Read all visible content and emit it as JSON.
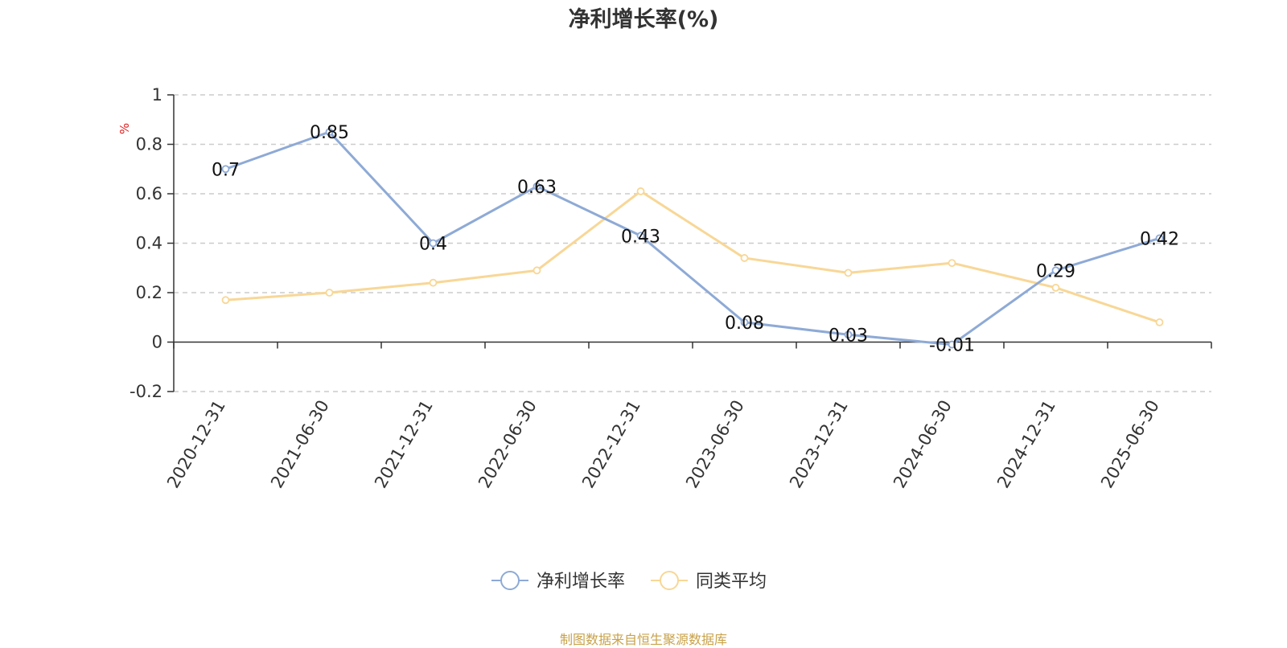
{
  "chart_data": {
    "type": "line",
    "title": "净利增长率(%)",
    "ylabel": "%",
    "xlabel": "",
    "categories": [
      "2020-12-31",
      "2021-06-30",
      "2021-12-31",
      "2022-06-30",
      "2022-12-31",
      "2023-06-30",
      "2023-12-31",
      "2024-06-30",
      "2024-12-31",
      "2025-06-30"
    ],
    "ylim": [
      -0.2,
      1
    ],
    "yticks": [
      "-0.2",
      "0",
      "0.2",
      "0.4",
      "0.6",
      "0.8",
      "1"
    ],
    "grid": true,
    "legend_position": "bottom-center",
    "series": [
      {
        "name": "净利增长率",
        "color": "#8eaad6",
        "values": [
          0.7,
          0.85,
          0.4,
          0.63,
          0.43,
          0.08,
          0.03,
          -0.01,
          0.29,
          0.42
        ],
        "labels": [
          "0.7",
          "0.85",
          "0.4",
          "0.63",
          "0.43",
          "0.08",
          "0.03",
          "-0.01",
          "0.29",
          "0.42"
        ]
      },
      {
        "name": "同类平均",
        "color": "#f8d796",
        "values": [
          0.17,
          0.2,
          0.24,
          0.29,
          0.61,
          0.34,
          0.28,
          0.32,
          0.22,
          0.08
        ]
      }
    ]
  },
  "source": "制图数据来自恒生聚源数据库"
}
